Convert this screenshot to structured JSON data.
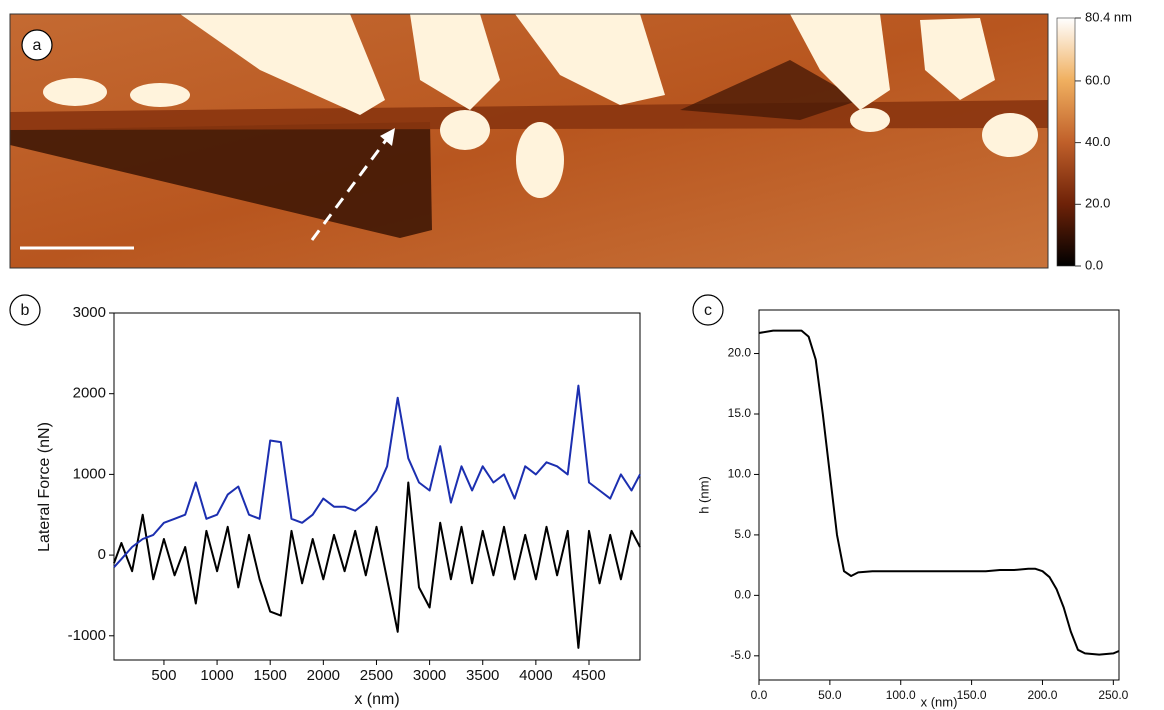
{
  "chart_data": [
    {
      "type": "image",
      "panel_label": "a",
      "colorbar_lim": [
        0,
        80.4
      ],
      "colorbar_ticks": [
        {
          "value": 0,
          "label": "0.0"
        },
        {
          "value": 20,
          "label": "20.0"
        },
        {
          "value": 40,
          "label": "40.0"
        },
        {
          "value": 60,
          "label": "60.0"
        },
        {
          "value": 80.4,
          "label": "80.4 nm"
        }
      ]
    },
    {
      "type": "line",
      "panel_label": "b",
      "x_label": "x (nm)",
      "y_label": "Lateral Force (nN)",
      "xlim": [
        30,
        4980
      ],
      "xticks": [
        500,
        1000,
        1500,
        2000,
        2500,
        3000,
        3500,
        4000,
        4500
      ],
      "ylim": [
        -1300,
        3000
      ],
      "yticks": [
        -1000,
        0,
        1000,
        2000,
        3000
      ],
      "x": [
        30,
        100,
        200,
        300,
        400,
        500,
        600,
        700,
        800,
        900,
        1000,
        1100,
        1200,
        1300,
        1400,
        1500,
        1600,
        1700,
        1800,
        1900,
        2000,
        2100,
        2200,
        2300,
        2400,
        2500,
        2600,
        2700,
        2800,
        2900,
        3000,
        3100,
        3200,
        3300,
        3400,
        3500,
        3600,
        3700,
        3800,
        3900,
        4000,
        4100,
        4200,
        4300,
        4400,
        4500,
        4600,
        4700,
        4800,
        4900,
        4980
      ],
      "series": [
        {
          "color": "#1c2fb0",
          "values": [
            -150,
            -50,
            100,
            200,
            250,
            400,
            450,
            500,
            900,
            450,
            500,
            750,
            850,
            500,
            450,
            1420,
            1400,
            450,
            400,
            500,
            700,
            600,
            600,
            550,
            650,
            800,
            1100,
            1950,
            1200,
            900,
            800,
            1350,
            650,
            1100,
            800,
            1100,
            900,
            1000,
            700,
            1100,
            1000,
            1150,
            1100,
            1000,
            2100,
            900,
            800,
            700,
            1000,
            800,
            1000
          ]
        },
        {
          "color": "#000000",
          "values": [
            -100,
            150,
            -200,
            500,
            -300,
            200,
            -250,
            100,
            -600,
            300,
            -200,
            350,
            -400,
            250,
            -300,
            -700,
            -750,
            300,
            -350,
            200,
            -300,
            250,
            -200,
            300,
            -250,
            350,
            -300,
            -950,
            900,
            -400,
            -650,
            400,
            -300,
            350,
            -350,
            300,
            -250,
            350,
            -300,
            250,
            -300,
            350,
            -250,
            300,
            -1150,
            300,
            -350,
            250,
            -300,
            300,
            100
          ]
        }
      ]
    },
    {
      "type": "line",
      "panel_label": "c",
      "x_label": "x (nm)",
      "y_label": "h (nm)",
      "xlim": [
        0,
        254
      ],
      "xticks": [
        {
          "value": 0,
          "label": "0.0"
        },
        {
          "value": 50,
          "label": "50.0"
        },
        {
          "value": 100,
          "label": "100.0"
        },
        {
          "value": 150,
          "label": "150.0"
        },
        {
          "value": 200,
          "label": "200.0"
        },
        {
          "value": 250,
          "label": "250.0"
        }
      ],
      "ylim": [
        -7,
        23.6
      ],
      "yticks": [
        {
          "value": -5,
          "label": "-5.0"
        },
        {
          "value": 0,
          "label": "0.0"
        },
        {
          "value": 5,
          "label": "5.0"
        },
        {
          "value": 10,
          "label": "10.0"
        },
        {
          "value": 15,
          "label": "15.0"
        },
        {
          "value": 20,
          "label": "20.0"
        }
      ],
      "x": [
        0,
        10,
        20,
        30,
        35,
        40,
        45,
        50,
        55,
        60,
        65,
        70,
        80,
        90,
        100,
        110,
        120,
        130,
        140,
        150,
        160,
        170,
        180,
        190,
        195,
        200,
        205,
        210,
        215,
        220,
        225,
        230,
        240,
        250,
        254
      ],
      "series": [
        {
          "color": "#000000",
          "values": [
            21.7,
            21.9,
            21.9,
            21.9,
            21.4,
            19.5,
            15.0,
            10.0,
            5.0,
            2.0,
            1.6,
            1.9,
            2.0,
            2.0,
            2.0,
            2.0,
            2.0,
            2.0,
            2.0,
            2.0,
            2.0,
            2.1,
            2.1,
            2.2,
            2.2,
            2.0,
            1.5,
            0.5,
            -1.0,
            -3.0,
            -4.5,
            -4.8,
            -4.9,
            -4.8,
            -4.6
          ]
        }
      ]
    }
  ]
}
